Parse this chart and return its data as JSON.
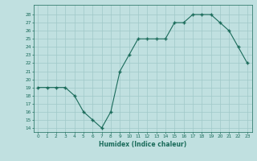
{
  "x": [
    0,
    1,
    2,
    3,
    4,
    5,
    6,
    7,
    8,
    9,
    10,
    11,
    12,
    13,
    14,
    15,
    16,
    17,
    18,
    19,
    20,
    21,
    22,
    23
  ],
  "y": [
    19,
    19,
    19,
    19,
    18,
    16,
    15,
    14,
    16,
    21,
    23,
    25,
    25,
    25,
    25,
    27,
    27,
    28,
    28,
    28,
    27,
    26,
    24,
    22
  ],
  "line_color": "#1a6b5a",
  "marker": "+",
  "bg_color": "#c0e0e0",
  "grid_color": "#a0c8c8",
  "xlabel": "Humidex (Indice chaleur)",
  "ylabel_ticks": [
    14,
    15,
    16,
    17,
    18,
    19,
    20,
    21,
    22,
    23,
    24,
    25,
    26,
    27,
    28
  ],
  "ylim": [
    13.5,
    29.2
  ],
  "xlim": [
    -0.5,
    23.5
  ]
}
